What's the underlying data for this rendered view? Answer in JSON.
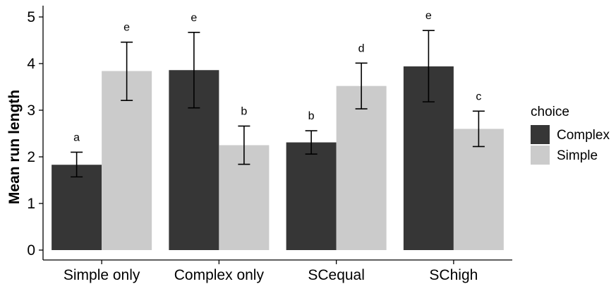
{
  "chart_data": {
    "type": "bar",
    "title": "",
    "xlabel": "",
    "ylabel": "Mean run length",
    "ylim": [
      0,
      5
    ],
    "yticks": [
      0,
      1,
      2,
      3,
      4,
      5
    ],
    "categories": [
      "Simple only",
      "Complex only",
      "SCequal",
      "SChigh"
    ],
    "grid": false,
    "legend": {
      "title": "choice",
      "placement": "right"
    },
    "series": [
      {
        "name": "Complex",
        "color": "#363636",
        "values": [
          1.83,
          3.86,
          2.31,
          3.94
        ],
        "err_low": [
          1.57,
          3.05,
          2.06,
          3.18
        ],
        "err_high": [
          2.1,
          4.67,
          2.56,
          4.71
        ],
        "labels": [
          "a",
          "e",
          "b",
          "e"
        ]
      },
      {
        "name": "Simple",
        "color": "#cbcbcb",
        "values": [
          3.84,
          2.25,
          3.52,
          2.6
        ],
        "err_low": [
          3.21,
          1.84,
          3.03,
          2.22
        ],
        "err_high": [
          4.46,
          2.66,
          4.01,
          2.98
        ],
        "labels": [
          "e",
          "b",
          "d",
          "c"
        ]
      }
    ]
  }
}
